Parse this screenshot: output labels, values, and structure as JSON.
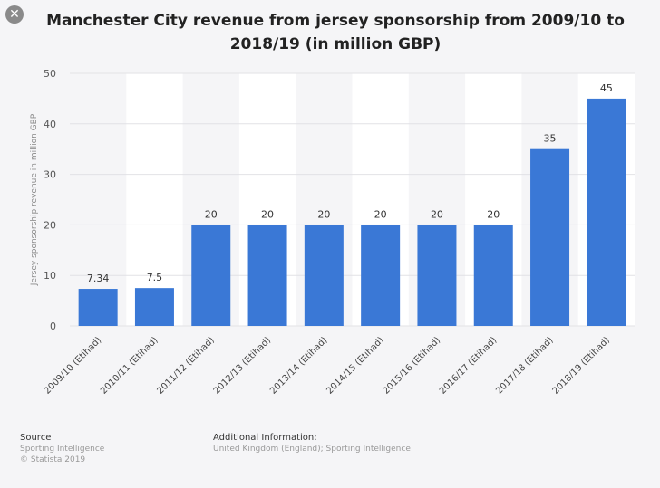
{
  "title": "Manchester City revenue from jersey sponsorship from 2009/10 to 2018/19 (in million GBP)",
  "close_icon": "close-icon",
  "chart_data": {
    "type": "bar",
    "title": "Manchester City revenue from jersey sponsorship from 2009/10 to 2018/19 (in million GBP)",
    "xlabel": "",
    "ylabel": "Jersey sponsorship revenue in million GBP",
    "ylim": [
      0,
      50
    ],
    "yticks": [
      0,
      10,
      20,
      30,
      40,
      50
    ],
    "grid": true,
    "categories": [
      "2009/10 (Etihad)",
      "2010/11 (Etihad)",
      "2011/12 (Etihad)",
      "2012/13 (Etihad)",
      "2013/14 (Etihad)",
      "2014/15 (Etihad)",
      "2015/16 (Etihad)",
      "2016/17 (Etihad)",
      "2017/18 (Etihad)",
      "2018/19 (Etihad)"
    ],
    "values": [
      7.34,
      7.5,
      20,
      20,
      20,
      20,
      20,
      20,
      35,
      45
    ],
    "labels": [
      "7.34",
      "7.5",
      "20",
      "20",
      "20",
      "20",
      "20",
      "20",
      "35",
      "45"
    ],
    "bar_color": "#3a78d6"
  },
  "footer": {
    "source_heading": "Source",
    "source_lines": [
      "Sporting Intelligence",
      "© Statista 2019"
    ],
    "info_heading": "Additional Information:",
    "info_text": "United Kingdom (England); Sporting Intelligence"
  }
}
